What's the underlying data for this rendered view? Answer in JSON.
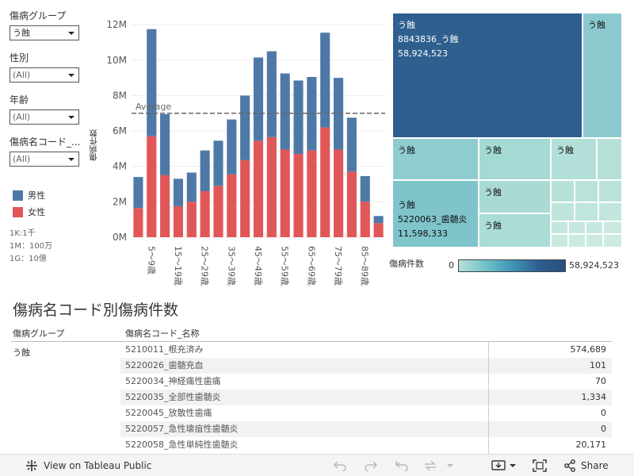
{
  "filters": {
    "disease_group": {
      "label": "傷病グループ",
      "value": "う蝕"
    },
    "gender": {
      "label": "性別",
      "value": "(All)"
    },
    "age": {
      "label": "年齢",
      "value": "(All)"
    },
    "disease_code": {
      "label": "傷病名コード_...",
      "value": "(All)"
    }
  },
  "legend": {
    "male": {
      "label": "男性",
      "color": "#4e79a7"
    },
    "female": {
      "label": "女性",
      "color": "#e15759"
    }
  },
  "units_note": [
    "1K:1千",
    "1M：100万",
    "1G：10億"
  ],
  "chart_data": {
    "type": "bar",
    "stacked": true,
    "ylabel": "傷病件数",
    "yticks": [
      "0M",
      "2M",
      "4M",
      "6M",
      "8M",
      "10M",
      "12M"
    ],
    "ylim": [
      0,
      12500000
    ],
    "reference_line": {
      "label": "Average",
      "value": 7000000
    },
    "categories": [
      "0～4歳",
      "5～9歳",
      "10～14歳",
      "15～19歳",
      "20～24歳",
      "25～29歳",
      "30～34歳",
      "35～39歳",
      "40～44歳",
      "45～49歳",
      "50～54歳",
      "55～59歳",
      "60～64歳",
      "65～69歳",
      "70～74歳",
      "75～79歳",
      "80～84歳",
      "85～89歳",
      "90～94歳"
    ],
    "shown_tick_labels": [
      "5～9歳",
      "15～19歳",
      "25～29歳",
      "35～39歳",
      "45～49歳",
      "55～59歳",
      "65～69歳",
      "75～79歳",
      "85～89歳"
    ],
    "series": [
      {
        "name": "女性",
        "color": "#e15759",
        "values": [
          1650000,
          5700000,
          3500000,
          1750000,
          2000000,
          2600000,
          2900000,
          3550000,
          4350000,
          5450000,
          5650000,
          4950000,
          4700000,
          4900000,
          6200000,
          4950000,
          3700000,
          2000000,
          800000
        ]
      },
      {
        "name": "男性",
        "color": "#4e79a7",
        "values": [
          1750000,
          6050000,
          3450000,
          1550000,
          1650000,
          2300000,
          2550000,
          3100000,
          3650000,
          4700000,
          4850000,
          4300000,
          4150000,
          4150000,
          5350000,
          4050000,
          3050000,
          1450000,
          400000
        ]
      }
    ]
  },
  "treemap": {
    "legend_title": "傷病件数",
    "min_label": "0",
    "max_label": "58,924,523",
    "cells": [
      {
        "lines": [
          "う蝕",
          "8843836_う蝕",
          "58,924,523"
        ],
        "color": "#2e5f8e",
        "dark": true
      },
      {
        "lines": [
          "う蝕"
        ],
        "color": "#8ccacf",
        "dark": false
      },
      {
        "lines": [
          "う蝕"
        ],
        "color": "#8fcccf",
        "dark": false
      },
      {
        "lines": [
          "う蝕",
          "5220063_歯髄炎",
          "11,598,333"
        ],
        "color": "#7fc4cb",
        "dark": false
      },
      {
        "lines": [
          "う蝕"
        ],
        "color": "#a5d9d3",
        "dark": false
      },
      {
        "lines": [
          "う蝕"
        ],
        "color": "#a9dbd4",
        "dark": false
      },
      {
        "lines": [
          "う蝕"
        ],
        "color": "#abdcd5",
        "dark": false
      },
      {
        "lines": [
          "う蝕"
        ],
        "color": "#b2dfd7",
        "dark": false
      }
    ]
  },
  "table": {
    "title": "傷病名コード別傷病件数",
    "col_group": "傷病グループ",
    "col_name": "傷病名コード_名称",
    "group": "う蝕",
    "rows": [
      {
        "name": "5210011_根充済み",
        "value": "574,689"
      },
      {
        "name": "5220026_歯髄充血",
        "value": "101"
      },
      {
        "name": "5220034_神経痛性歯痛",
        "value": "70"
      },
      {
        "name": "5220035_全部性歯髄炎",
        "value": "1,334"
      },
      {
        "name": "5220045_放散性歯痛",
        "value": "0"
      },
      {
        "name": "5220057_急性壊疽性歯髄炎",
        "value": "0"
      },
      {
        "name": "5220058_急性単純性歯髄炎",
        "value": "20,171"
      }
    ]
  },
  "footer": {
    "view_on": "View on Tableau Public",
    "share": "Share"
  }
}
